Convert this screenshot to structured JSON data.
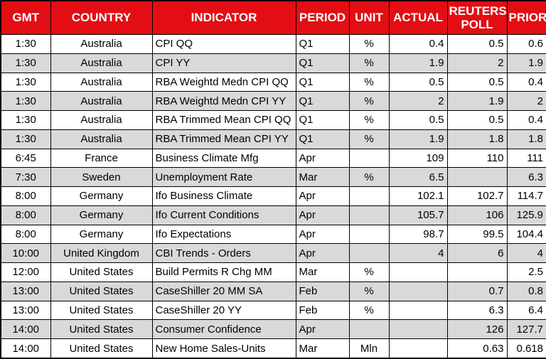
{
  "chart_data": {
    "type": "table",
    "columns": [
      "GMT",
      "COUNTRY",
      "INDICATOR",
      "PERIOD",
      "UNIT",
      "ACTUAL",
      "REUTERS POLL",
      "PRIOR"
    ],
    "rows": [
      [
        "1:30",
        "Australia",
        "CPI QQ",
        "Q1",
        "%",
        "0.4",
        "0.5",
        "0.6"
      ],
      [
        "1:30",
        "Australia",
        "CPI YY",
        "Q1",
        "%",
        "1.9",
        "2",
        "1.9"
      ],
      [
        "1:30",
        "Australia",
        "RBA Weightd Medn CPI QQ",
        "Q1",
        "%",
        "0.5",
        "0.5",
        "0.4"
      ],
      [
        "1:30",
        "Australia",
        "RBA Weightd Medn CPI YY",
        "Q1",
        "%",
        "2",
        "1.9",
        "2"
      ],
      [
        "1:30",
        "Australia",
        "RBA Trimmed Mean CPI QQ",
        "Q1",
        "%",
        "0.5",
        "0.5",
        "0.4"
      ],
      [
        "1:30",
        "Australia",
        "RBA Trimmed Mean CPI YY",
        "Q1",
        "%",
        "1.9",
        "1.8",
        "1.8"
      ],
      [
        "6:45",
        "France",
        "Business Climate Mfg",
        "Apr",
        "",
        "109",
        "110",
        "111"
      ],
      [
        "7:30",
        "Sweden",
        "Unemployment Rate",
        "Mar",
        "%",
        "6.5",
        "",
        "6.3"
      ],
      [
        "8:00",
        "Germany",
        "Ifo Business Climate",
        "Apr",
        "",
        "102.1",
        "102.7",
        "114.7"
      ],
      [
        "8:00",
        "Germany",
        "Ifo Current Conditions",
        "Apr",
        "",
        "105.7",
        "106",
        "125.9"
      ],
      [
        "8:00",
        "Germany",
        "Ifo Expectations",
        "Apr",
        "",
        "98.7",
        "99.5",
        "104.4"
      ],
      [
        "10:00",
        "United Kingdom",
        "CBI Trends - Orders",
        "Apr",
        "",
        "4",
        "6",
        "4"
      ],
      [
        "12:00",
        "United States",
        "Build Permits R Chg MM",
        "Mar",
        "%",
        "",
        "",
        "2.5"
      ],
      [
        "13:00",
        "United States",
        "CaseShiller 20 MM SA",
        "Feb",
        "%",
        "",
        "0.7",
        "0.8"
      ],
      [
        "13:00",
        "United States",
        "CaseShiller 20 YY",
        "Feb",
        "%",
        "",
        "6.3",
        "6.4"
      ],
      [
        "14:00",
        "United States",
        "Consumer Confidence",
        "Apr",
        "",
        "",
        "126",
        "127.7"
      ],
      [
        "14:00",
        "United States",
        "New Home Sales-Units",
        "Mar",
        "Mln",
        "",
        "0.63",
        "0.618"
      ]
    ]
  },
  "colors": {
    "header_bg": "#E20E14",
    "header_text": "#FFFFFF",
    "alt_row_bg": "#D9D9D9",
    "row_bg": "#FFFFFF",
    "grid": "#000000",
    "text": "#000000"
  }
}
